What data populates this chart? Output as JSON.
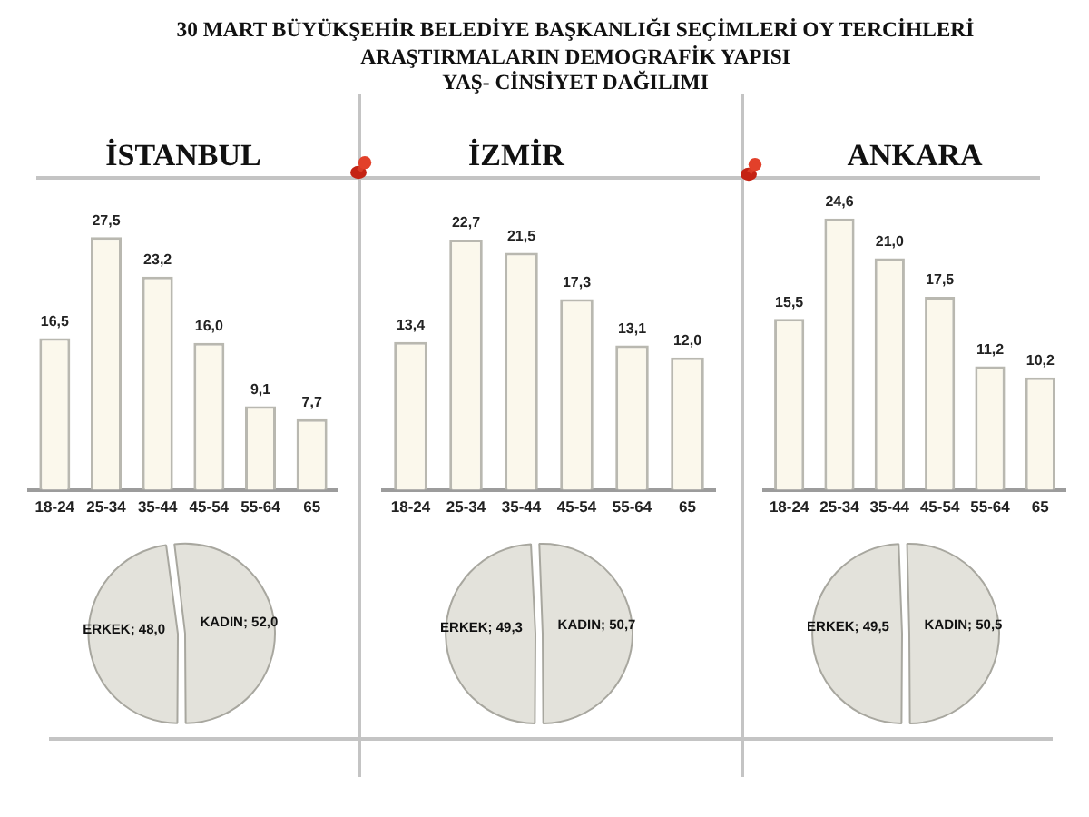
{
  "chart_data": [
    {
      "type": "other",
      "title": "30 MART BÜYÜKŞEHİR BELEDİYE BAŞKANLIĞI SEÇİMLERİ OY TERCİHLERİ\nARAŞTIRMALARIN DEMOGRAFİK YAPISI\nYAŞ- CİNSİYET DAĞILIMI"
    },
    {
      "type": "bar",
      "title": "İSTANBUL",
      "categories": [
        "18-24",
        "25-34",
        "35-44",
        "45-54",
        "55-64",
        "65"
      ],
      "values": [
        16.5,
        27.5,
        23.2,
        16.0,
        9.1,
        7.7
      ],
      "value_labels": [
        "16,5",
        "27,5",
        "23,2",
        "16,0",
        "9,1",
        "7,7"
      ],
      "color": "#fbf8ec",
      "tick_labels": "x"
    },
    {
      "type": "bar",
      "title": "İZMİR",
      "categories": [
        "18-24",
        "25-34",
        "35-44",
        "45-54",
        "55-64",
        "65"
      ],
      "values": [
        13.4,
        22.7,
        21.5,
        17.3,
        13.1,
        12.0
      ],
      "value_labels": [
        "13,4",
        "22,7",
        "21,5",
        "17,3",
        "13,1",
        "12,0"
      ],
      "color": "#fbf8ec",
      "tick_labels": "x"
    },
    {
      "type": "bar",
      "title": "ANKARA",
      "categories": [
        "18-24",
        "25-34",
        "35-44",
        "45-54",
        "55-64",
        "65"
      ],
      "values": [
        15.5,
        24.6,
        21.0,
        17.5,
        11.2,
        10.2
      ],
      "value_labels": [
        "15,5",
        "24,6",
        "21,0",
        "17,5",
        "11,2",
        "10,2"
      ],
      "color": "#fbf8ec",
      "tick_labels": "x"
    },
    {
      "type": "pie",
      "categories": [
        "ERKEK",
        "KADIN"
      ],
      "values": [
        48.0,
        52.0
      ],
      "value_labels": [
        "48,0",
        "52,0"
      ],
      "colors": [
        "#e3e2db",
        "#e3e2db"
      ]
    },
    {
      "type": "pie",
      "categories": [
        "ERKEK",
        "KADIN"
      ],
      "values": [
        49.3,
        50.7
      ],
      "value_labels": [
        "49,3",
        "50,7"
      ],
      "colors": [
        "#e3e2db",
        "#e3e2db"
      ]
    },
    {
      "type": "pie",
      "categories": [
        "ERKEK",
        "KADIN"
      ],
      "values": [
        49.5,
        50.5
      ],
      "value_labels": [
        "49,5",
        "50,5"
      ],
      "colors": [
        "#e3e2db",
        "#e3e2db"
      ]
    }
  ]
}
